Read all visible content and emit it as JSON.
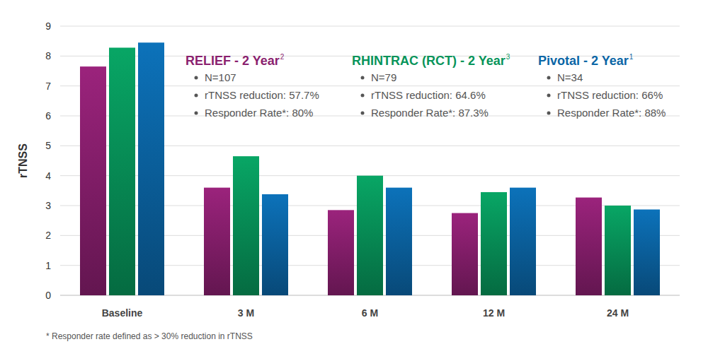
{
  "chart_data": {
    "type": "bar",
    "y_label": "rTNSS",
    "categories": [
      "Baseline",
      "3 M",
      "6 M",
      "12 M",
      "24 M"
    ],
    "series": [
      {
        "name": "RELIEF - 2 Year",
        "color": "#8a1f6f",
        "values": [
          7.65,
          3.6,
          2.85,
          2.75,
          3.27
        ]
      },
      {
        "name": "RHINTRAC (RCT) - 2 Year",
        "color": "#07945a",
        "values": [
          8.28,
          4.65,
          4.0,
          3.45,
          3.0
        ]
      },
      {
        "name": "Pivotal - 2 Year",
        "color": "#0b66a6",
        "values": [
          8.45,
          3.38,
          3.6,
          3.6,
          2.87
        ]
      }
    ],
    "annotations": [
      {
        "superscript": "2",
        "lines": [
          "N=107",
          "rTNSS reduction: 57.7%",
          "Responder Rate*: 80%"
        ]
      },
      {
        "superscript": "3",
        "lines": [
          "N=79",
          "rTNSS reduction: 64.6%",
          "Responder Rate*: 87.3%"
        ]
      },
      {
        "superscript": "1",
        "lines": [
          "N=34",
          "rTNSS reduction: 66%",
          "Responder Rate*: 88%"
        ]
      }
    ],
    "footnote": "* Responder rate defined as > 30% reduction in rTNSS",
    "ylim": [
      0,
      9
    ],
    "yticks": [
      0,
      1,
      2,
      3,
      4,
      5,
      6,
      7,
      8,
      9
    ],
    "grid": true
  }
}
